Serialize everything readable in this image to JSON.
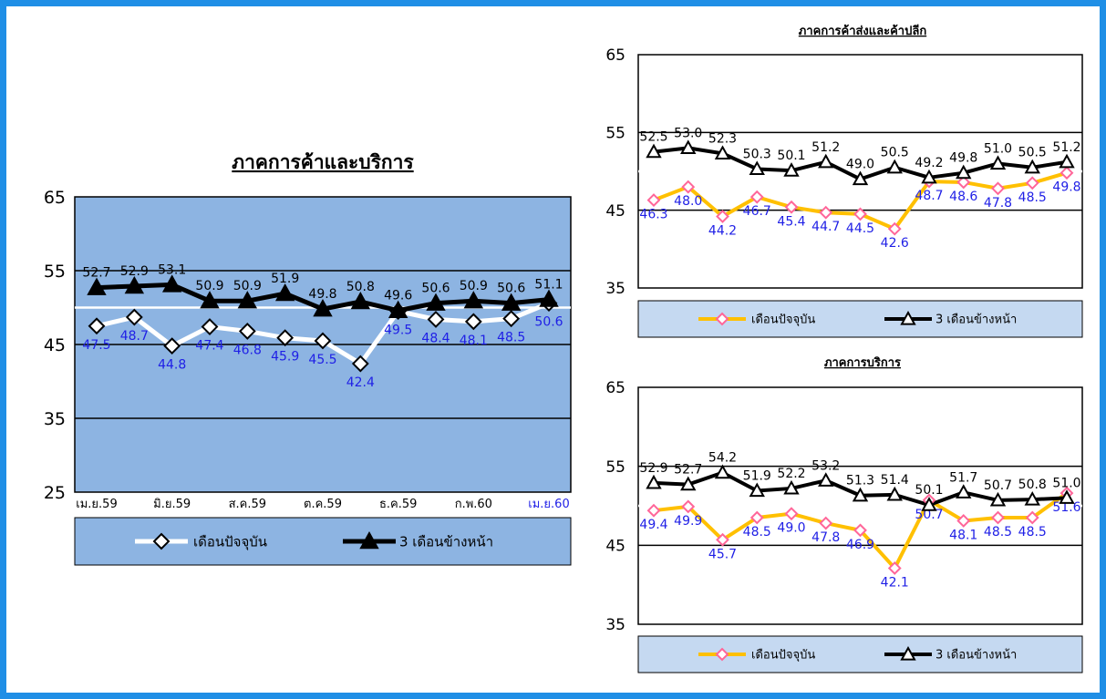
{
  "colors": {
    "frame_border": "#1f8fe6",
    "main_plot_bg": "#8db4e2",
    "legend_bg": "#c5d9f1",
    "value_label_blue": "#1f1fe6",
    "current_line_main": "#ffffff",
    "current_line_small": "#ffc000",
    "current_marker_small": "#ff6699",
    "ahead_line": "#000000"
  },
  "chart_data": [
    {
      "type": "line",
      "title": "ภาคการค้าและบริการ",
      "ylim": [
        25,
        65
      ],
      "y_ticks": [
        "25",
        "35",
        "45",
        "55",
        "65"
      ],
      "x_tick_labels": [
        "เม.ย.59",
        "มิ.ย.59",
        "ส.ค.59",
        "ต.ค.59",
        "ธ.ค.59",
        "ก.พ.60",
        "เม.ย.60"
      ],
      "reference_line": 50,
      "grid": true,
      "legend_position": "bottom",
      "series": [
        {
          "name": "เดือนปัจจุบัน",
          "marker": "diamond",
          "values": [
            47.5,
            48.7,
            44.8,
            47.4,
            46.8,
            45.9,
            45.5,
            42.4,
            49.5,
            48.4,
            48.1,
            48.5,
            50.6
          ]
        },
        {
          "name": "3 เดือนข้างหน้า",
          "marker": "triangle",
          "values": [
            52.7,
            52.9,
            53.1,
            50.9,
            50.9,
            51.9,
            49.8,
            50.8,
            49.6,
            50.6,
            50.9,
            50.6,
            51.1
          ]
        }
      ]
    },
    {
      "type": "line",
      "title": "ภาคการค้าส่งและค้าปลีก",
      "ylim": [
        35,
        65
      ],
      "y_ticks": [
        "35",
        "45",
        "55",
        "65"
      ],
      "reference_line": 50,
      "grid": true,
      "legend_position": "bottom",
      "series": [
        {
          "name": "เดือนปัจจุบัน",
          "marker": "diamond",
          "values": [
            46.3,
            48.0,
            44.2,
            46.7,
            45.4,
            44.7,
            44.5,
            42.6,
            48.7,
            48.6,
            47.8,
            48.5,
            49.8
          ]
        },
        {
          "name": "3 เดือนข้างหน้า",
          "marker": "triangle",
          "values": [
            52.5,
            53.0,
            52.3,
            50.3,
            50.1,
            51.2,
            49.0,
            50.5,
            49.2,
            49.8,
            51.0,
            50.5,
            51.2
          ]
        }
      ]
    },
    {
      "type": "line",
      "title": "ภาคการบริการ",
      "ylim": [
        35,
        65
      ],
      "y_ticks": [
        "35",
        "45",
        "55",
        "65"
      ],
      "reference_line": 50,
      "grid": true,
      "legend_position": "bottom",
      "series": [
        {
          "name": "เดือนปัจจุบัน",
          "marker": "diamond",
          "values": [
            49.4,
            49.9,
            45.7,
            48.5,
            49.0,
            47.8,
            46.9,
            42.1,
            50.7,
            48.1,
            48.5,
            48.5,
            51.6
          ]
        },
        {
          "name": "3 เดือนข้างหน้า",
          "marker": "triangle",
          "values": [
            52.9,
            52.7,
            54.2,
            51.9,
            52.2,
            53.2,
            51.3,
            51.4,
            50.1,
            51.7,
            50.7,
            50.8,
            51.0
          ]
        }
      ]
    }
  ]
}
